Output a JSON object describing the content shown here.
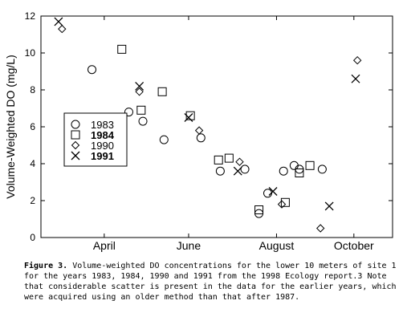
{
  "chart_data": {
    "type": "scatter",
    "ylabel": "Volume-Weighted DO (mg/L)",
    "xlabel": "",
    "ylim": [
      0,
      12
    ],
    "yticks": [
      0,
      2,
      4,
      6,
      8,
      10,
      12
    ],
    "xlim": [
      0,
      10
    ],
    "xticks": [
      {
        "label": "April",
        "x": 1.8
      },
      {
        "label": "June",
        "x": 4.2
      },
      {
        "label": "August",
        "x": 6.7
      },
      {
        "label": "October",
        "x": 8.9
      }
    ],
    "grid": false,
    "legend_position": "left-middle",
    "series": [
      {
        "name": "1983",
        "marker": "circle",
        "bold": false,
        "points": [
          [
            1.45,
            9.1
          ],
          [
            2.5,
            6.8
          ],
          [
            2.9,
            6.3
          ],
          [
            3.5,
            5.3
          ],
          [
            4.55,
            5.4
          ],
          [
            5.1,
            3.6
          ],
          [
            5.8,
            3.7
          ],
          [
            6.2,
            1.3
          ],
          [
            6.45,
            2.4
          ],
          [
            6.9,
            3.6
          ],
          [
            7.2,
            3.9
          ],
          [
            7.35,
            3.7
          ],
          [
            8.0,
            3.7
          ]
        ]
      },
      {
        "name": "1984",
        "marker": "square",
        "bold": true,
        "points": [
          [
            2.3,
            10.2
          ],
          [
            2.85,
            6.9
          ],
          [
            3.45,
            7.9
          ],
          [
            4.25,
            6.6
          ],
          [
            5.05,
            4.2
          ],
          [
            5.35,
            4.3
          ],
          [
            6.2,
            1.5
          ],
          [
            6.95,
            1.9
          ],
          [
            7.35,
            3.5
          ],
          [
            7.65,
            3.9
          ]
        ]
      },
      {
        "name": "1990",
        "marker": "diamond",
        "bold": false,
        "points": [
          [
            0.6,
            11.3
          ],
          [
            2.8,
            7.9
          ],
          [
            4.5,
            5.8
          ],
          [
            5.65,
            4.1
          ],
          [
            6.85,
            1.8
          ],
          [
            7.95,
            0.5
          ],
          [
            9.0,
            9.6
          ]
        ]
      },
      {
        "name": "1991",
        "marker": "x",
        "bold": true,
        "points": [
          [
            0.5,
            11.7
          ],
          [
            2.8,
            8.2
          ],
          [
            4.2,
            6.5
          ],
          [
            5.6,
            3.6
          ],
          [
            6.6,
            2.5
          ],
          [
            8.2,
            1.7
          ],
          [
            8.95,
            8.6
          ]
        ]
      }
    ]
  },
  "caption": {
    "label": "Figure 3.",
    "text": " Volume-weighted DO concentrations for the lower 10 meters of site 1 for the years 1983, 1984, 1990 and 1991 from the 1998 Ecology report.3 Note that considerable scatter is present in the data for the earlier years, which were acquired using an older method than that after 1987."
  }
}
